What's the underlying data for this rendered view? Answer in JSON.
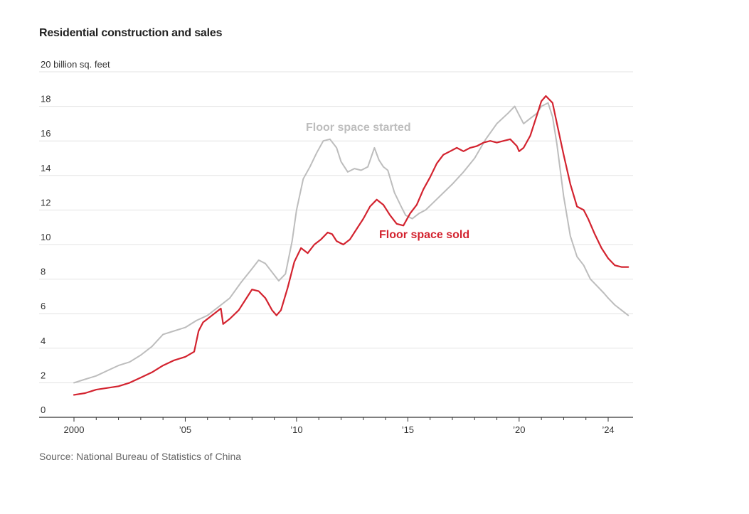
{
  "title": "Residential construction and sales",
  "source": "Source: National Bureau of Statistics of China",
  "chart_data": {
    "type": "line",
    "title": "Residential construction and sales",
    "unit_label": "20 billion sq. feet",
    "ylabel": "billion sq. feet",
    "xlabel": "",
    "ylim": [
      0,
      20
    ],
    "xlim": [
      1999.75,
      2024.9
    ],
    "yticks": [
      0,
      2,
      4,
      6,
      8,
      10,
      12,
      14,
      16,
      18,
      20
    ],
    "ytick_labels": [
      "0",
      "2",
      "4",
      "6",
      "8",
      "10",
      "12",
      "14",
      "16",
      "18",
      "20 billion sq. feet"
    ],
    "xticks": [
      2000,
      2005,
      2010,
      2015,
      2020,
      2024
    ],
    "xtick_labels": [
      "2000",
      "’05",
      "’10",
      "’15",
      "’20",
      "’24"
    ],
    "grid": true,
    "colors": {
      "started": "#bdbdbd",
      "sold": "#d3232f",
      "grid": "#e3e3e3",
      "axis": "#333333"
    },
    "series": [
      {
        "name": "Floor space started",
        "label": "Floor space started",
        "color": "#bdbdbd",
        "x": [
          2000,
          2000.5,
          2001,
          2001.5,
          2002,
          2002.5,
          2003,
          2003.5,
          2004,
          2004.5,
          2005,
          2005.5,
          2006,
          2006.5,
          2007,
          2007.5,
          2008,
          2008.3,
          2008.6,
          2008.9,
          2009.2,
          2009.5,
          2009.8,
          2010,
          2010.3,
          2010.6,
          2010.9,
          2011.2,
          2011.5,
          2011.8,
          2012,
          2012.3,
          2012.6,
          2012.9,
          2013.2,
          2013.5,
          2013.7,
          2013.9,
          2014.1,
          2014.4,
          2014.7,
          2014.9,
          2015.2,
          2015.5,
          2015.8,
          2016.2,
          2016.6,
          2017,
          2017.5,
          2018,
          2018.5,
          2019,
          2019.5,
          2019.8,
          2020,
          2020.2,
          2020.5,
          2020.8,
          2021,
          2021.3,
          2021.5,
          2021.7,
          2022,
          2022.3,
          2022.6,
          2022.9,
          2023.2,
          2023.5,
          2023.8,
          2024,
          2024.3,
          2024.6,
          2024.9
        ],
        "y": [
          2.0,
          2.2,
          2.4,
          2.7,
          3.0,
          3.2,
          3.6,
          4.1,
          4.8,
          5.0,
          5.2,
          5.6,
          5.9,
          6.4,
          6.9,
          7.8,
          8.6,
          9.1,
          8.9,
          8.4,
          7.9,
          8.3,
          10.2,
          12.0,
          13.8,
          14.5,
          15.3,
          16.0,
          16.1,
          15.6,
          14.8,
          14.2,
          14.4,
          14.3,
          14.5,
          15.6,
          14.9,
          14.5,
          14.3,
          13.0,
          12.2,
          11.7,
          11.5,
          11.8,
          12.0,
          12.5,
          13.0,
          13.5,
          14.2,
          15.0,
          16.1,
          17.0,
          17.6,
          18.0,
          17.5,
          17.0,
          17.3,
          17.6,
          18.0,
          18.2,
          17.4,
          15.8,
          12.8,
          10.5,
          9.3,
          8.8,
          8.0,
          7.6,
          7.2,
          6.9,
          6.5,
          6.2,
          5.9
        ]
      },
      {
        "name": "Floor space sold",
        "label": "Floor space sold",
        "color": "#d3232f",
        "x": [
          2000,
          2000.5,
          2001,
          2001.5,
          2002,
          2002.5,
          2003,
          2003.5,
          2004,
          2004.5,
          2005,
          2005.4,
          2005.6,
          2005.8,
          2006,
          2006.3,
          2006.6,
          2006.7,
          2007,
          2007.4,
          2007.8,
          2008,
          2008.3,
          2008.6,
          2008.9,
          2009.1,
          2009.3,
          2009.6,
          2009.9,
          2010.2,
          2010.5,
          2010.8,
          2011.1,
          2011.4,
          2011.6,
          2011.8,
          2012.1,
          2012.4,
          2012.7,
          2013,
          2013.3,
          2013.6,
          2013.9,
          2014.2,
          2014.5,
          2014.8,
          2015.1,
          2015.4,
          2015.7,
          2016,
          2016.3,
          2016.6,
          2016.9,
          2017.2,
          2017.5,
          2017.8,
          2018.1,
          2018.4,
          2018.7,
          2019,
          2019.3,
          2019.6,
          2019.9,
          2020,
          2020.2,
          2020.5,
          2020.8,
          2021,
          2021.2,
          2021.5,
          2021.7,
          2022,
          2022.3,
          2022.6,
          2022.9,
          2023.1,
          2023.4,
          2023.7,
          2024,
          2024.3,
          2024.6,
          2024.9
        ],
        "y": [
          1.3,
          1.4,
          1.6,
          1.7,
          1.8,
          2.0,
          2.3,
          2.6,
          3.0,
          3.3,
          3.5,
          3.8,
          5.0,
          5.5,
          5.7,
          6.0,
          6.3,
          5.4,
          5.7,
          6.2,
          7.0,
          7.4,
          7.3,
          6.9,
          6.2,
          5.9,
          6.2,
          7.5,
          9.0,
          9.8,
          9.5,
          10.0,
          10.3,
          10.7,
          10.6,
          10.2,
          10.0,
          10.3,
          10.9,
          11.5,
          12.2,
          12.6,
          12.3,
          11.7,
          11.2,
          11.1,
          11.8,
          12.3,
          13.2,
          13.9,
          14.7,
          15.2,
          15.4,
          15.6,
          15.4,
          15.6,
          15.7,
          15.9,
          16.0,
          15.9,
          16.0,
          16.1,
          15.7,
          15.4,
          15.6,
          16.3,
          17.5,
          18.3,
          18.6,
          18.2,
          17.0,
          15.2,
          13.5,
          12.2,
          12.0,
          11.5,
          10.6,
          9.8,
          9.2,
          8.8,
          8.7,
          8.7
        ]
      }
    ]
  }
}
